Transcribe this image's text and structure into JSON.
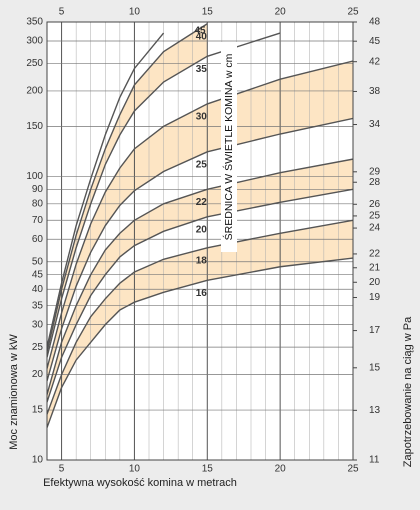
{
  "chart_data": {
    "type": "line",
    "annotation": "ŚREDNICA W ŚWIETLE KOMINA w cm",
    "x_label": "Efektywna wysokość komina w metrach",
    "y_label": "Moc znamionowa w kW",
    "y2_label": "Zapotrzebowanie na ciąg w Pa",
    "x": [
      4,
      5,
      6,
      7,
      8,
      9,
      10,
      12,
      15,
      20,
      25
    ],
    "series": [
      {
        "name": "16",
        "color": "#555555",
        "values": [
          13,
          18,
          22.5,
          26,
          30,
          33.8,
          36,
          39,
          43,
          48,
          51.5
        ]
      },
      {
        "name": "18",
        "color": "#555555",
        "values": [
          14.5,
          20,
          26,
          32,
          37,
          42,
          46,
          51,
          56,
          63,
          70
        ]
      },
      {
        "name": "20",
        "color": "#555555",
        "values": [
          16,
          23,
          30,
          38,
          45,
          52,
          57,
          64,
          72,
          81,
          90
        ]
      },
      {
        "name": "22",
        "color": "#555555",
        "values": [
          17,
          26,
          35,
          45,
          55,
          63,
          70,
          80,
          90,
          103,
          115
        ]
      },
      {
        "name": "25",
        "color": "#555555",
        "values": [
          19,
          29,
          41,
          54,
          67,
          79,
          89,
          104,
          122,
          141,
          160
        ]
      },
      {
        "name": "30",
        "color": "#555555",
        "values": [
          21,
          33,
          49,
          68,
          88,
          107,
          125,
          150,
          180,
          220,
          255
        ]
      },
      {
        "name": "35",
        "color": "#555555",
        "values": [
          23,
          37,
          56,
          80,
          110,
          140,
          170,
          215,
          265,
          320,
          null
        ]
      },
      {
        "name": "40",
        "color": "#555555",
        "values": [
          24,
          40,
          62,
          90,
          125,
          165,
          210,
          275,
          345,
          null,
          null
        ]
      },
      {
        "name": "45",
        "color": "#555555",
        "values": [
          25,
          42,
          67,
          98,
          140,
          190,
          240,
          320,
          null,
          null,
          null
        ]
      }
    ],
    "band_color": "#fde5c4",
    "xlim": [
      4,
      25
    ],
    "xticks": [
      5,
      10,
      15,
      20,
      25
    ],
    "x_minor_step": 1,
    "ylim": [
      10,
      350
    ],
    "y_log": true,
    "yticks": [
      10,
      15,
      20,
      25,
      30,
      35,
      40,
      45,
      50,
      60,
      70,
      80,
      90,
      100,
      150,
      200,
      250,
      300,
      350
    ],
    "y2lim": [
      11,
      48
    ],
    "y2_log": true,
    "y2ticks": [
      11,
      13,
      15,
      17,
      19,
      20,
      21,
      22,
      24,
      25,
      26,
      28,
      29,
      34,
      38,
      42,
      45,
      48
    ],
    "grid": true
  }
}
